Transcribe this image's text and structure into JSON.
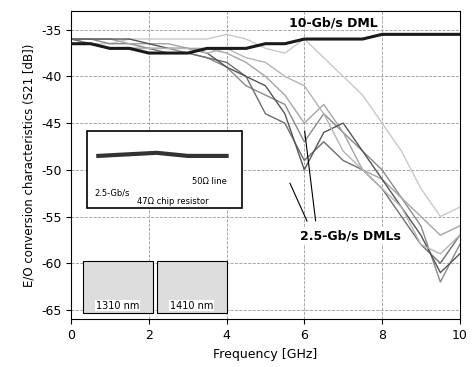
{
  "chart_data": {
    "type": "line",
    "x_label": "Frequency [GHz]",
    "y_label": "E/O conversion characteristics (S21 [dB])",
    "xlim": [
      0,
      10
    ],
    "xticks": [
      0,
      2,
      4,
      6,
      8,
      10
    ],
    "ylim": [
      -66,
      -33
    ],
    "yticks": [
      -65,
      -60,
      -55,
      -50,
      -45,
      -40,
      -35
    ],
    "grid": true,
    "x": [
      0,
      0.5,
      1,
      1.5,
      2,
      2.5,
      3,
      3.5,
      4,
      4.5,
      5,
      5.5,
      6,
      6.5,
      7,
      7.5,
      8,
      8.5,
      9,
      9.5,
      10
    ],
    "series": [
      {
        "color": "#1a1a1a",
        "values": [
          -36.5,
          -36.5,
          -37,
          -37,
          -37.5,
          -37.5,
          -37.5,
          -37,
          -37,
          -37,
          -36.5,
          -36.5,
          -36,
          -36,
          -36,
          -36,
          -35.5,
          -35.5,
          -35.5,
          -35.5,
          -35.5
        ]
      },
      {
        "color": "#c8c8c8",
        "values": [
          -36,
          -36.5,
          -36.5,
          -36,
          -36,
          -36,
          -36,
          -36,
          -35.5,
          -36,
          -37,
          -37.5,
          -36,
          -38,
          -40,
          -42,
          -45,
          -48,
          -52,
          -55,
          -54
        ]
      },
      {
        "color": "#8a8a8a",
        "values": [
          -36,
          -36,
          -36.5,
          -36.5,
          -37,
          -37,
          -37.5,
          -38,
          -39,
          -41,
          -42,
          -43,
          -47,
          -44,
          -46,
          -48,
          -50,
          -53,
          -56,
          -62,
          -58
        ]
      },
      {
        "color": "#6e6e6e",
        "values": [
          -36,
          -36.5,
          -37,
          -37,
          -37,
          -37.5,
          -37.5,
          -38,
          -38.5,
          -40,
          -44,
          -45,
          -49,
          -47,
          -49,
          -50,
          -52,
          -55,
          -58,
          -60,
          -57
        ]
      },
      {
        "color": "#a5a5a5",
        "values": [
          -36,
          -36,
          -36,
          -36.5,
          -36.5,
          -36.5,
          -37,
          -37,
          -37.5,
          -38.5,
          -40,
          -42,
          -45,
          -43,
          -46,
          -50,
          -51,
          -53,
          -55,
          -57,
          -56
        ]
      },
      {
        "color": "#555555",
        "values": [
          -36,
          -36,
          -36,
          -36,
          -36.5,
          -37,
          -37,
          -37.5,
          -39,
          -40,
          -41,
          -44,
          -50,
          -46,
          -45,
          -48,
          -51,
          -54,
          -57,
          -61,
          -59
        ]
      },
      {
        "color": "#b5b5b5",
        "values": [
          -36.5,
          -36.5,
          -37,
          -37,
          -37,
          -37,
          -37,
          -37.5,
          -37,
          -38,
          -38.5,
          -40,
          -41,
          -44,
          -48,
          -50,
          -52,
          -54,
          -58,
          -59,
          -57
        ]
      }
    ],
    "annotations": [
      "10-Gb/s DML",
      "2.5-Gb/s DMLs"
    ],
    "inset_photo_labels": [
      "2.5-Gb/s",
      "47Ω chip resistor",
      "50Ω line"
    ],
    "inset_eye_labels": [
      "1310 nm",
      "1410 nm"
    ]
  }
}
